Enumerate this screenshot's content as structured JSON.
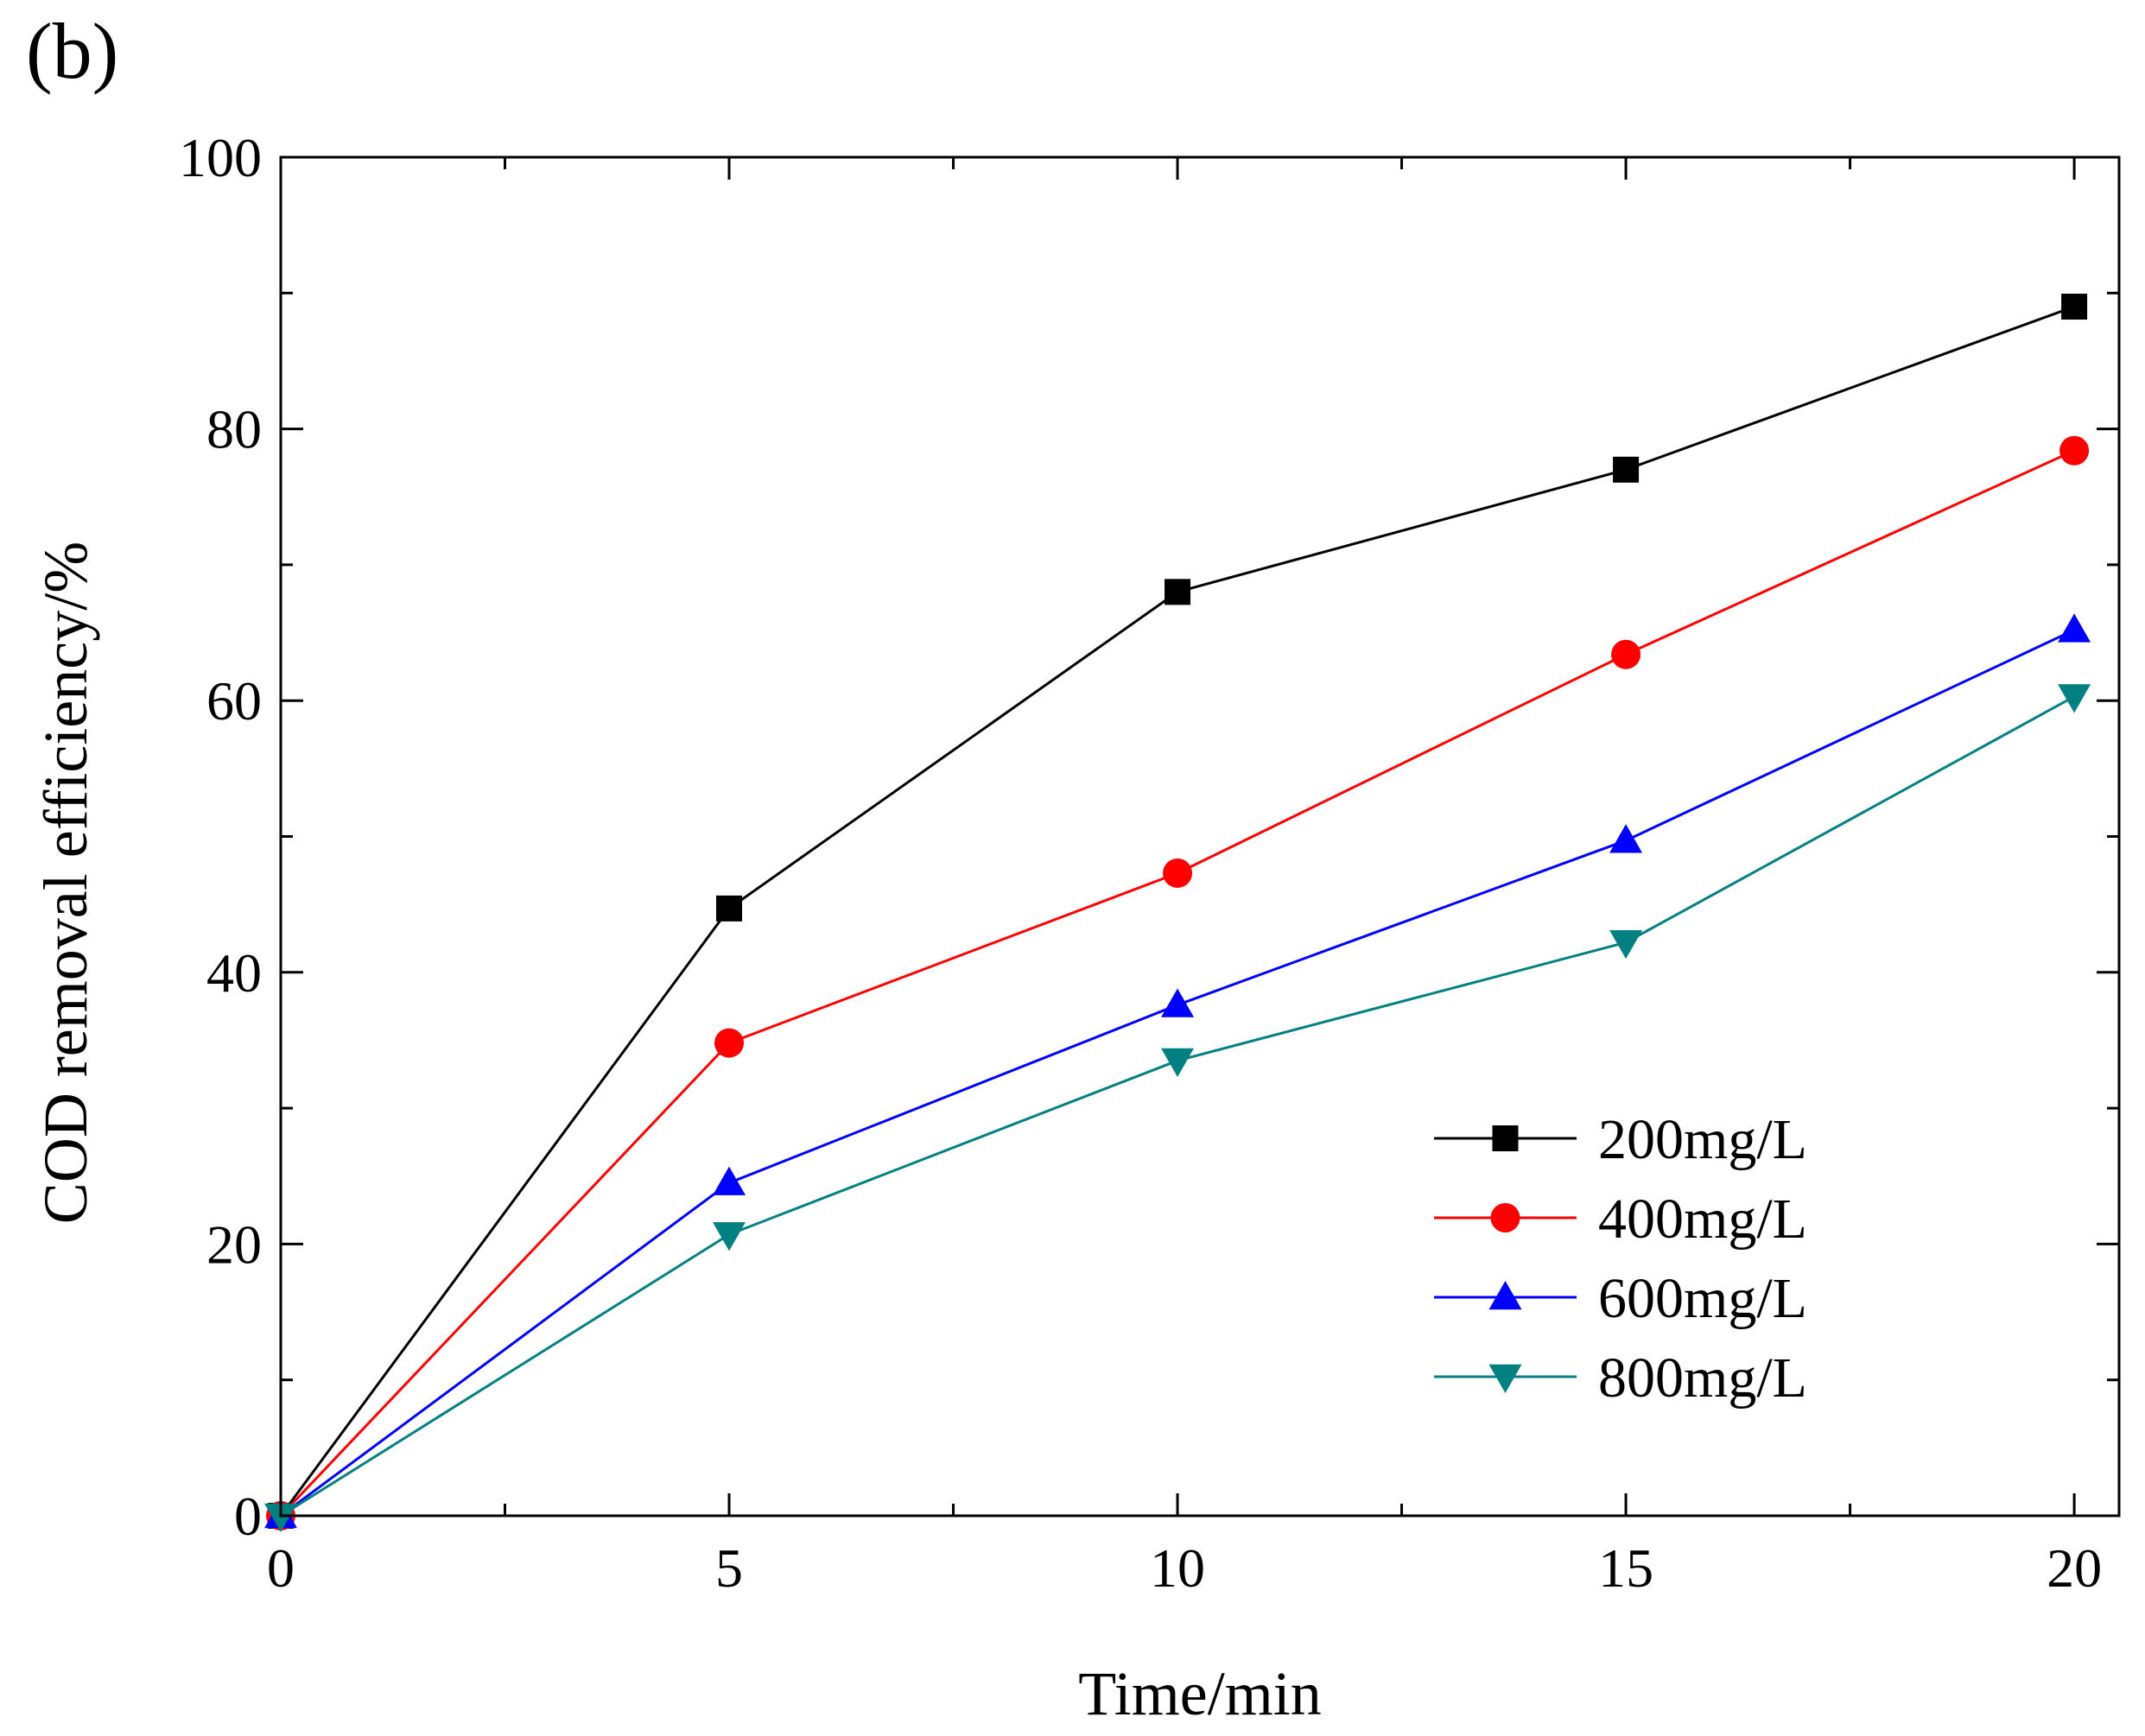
{
  "panel_label": "(b)",
  "chart_data": {
    "type": "line",
    "title": "",
    "xlabel": "Time/min",
    "ylabel": "COD removal efficiency/%",
    "x": [
      0,
      5,
      10,
      15,
      20
    ],
    "xlim": [
      0,
      20.5
    ],
    "ylim": [
      0,
      100
    ],
    "x_ticks": [
      0,
      5,
      10,
      15,
      20
    ],
    "x_tick_labels": [
      "0",
      "5",
      "10",
      "15",
      "20"
    ],
    "x_minor_ticks": [
      2.5,
      7.5,
      12.5,
      17.5
    ],
    "y_ticks": [
      0,
      20,
      40,
      60,
      80,
      100
    ],
    "y_tick_labels": [
      "0",
      "20",
      "40",
      "60",
      "80",
      "100"
    ],
    "y_minor_ticks": [
      10,
      30,
      50,
      70,
      90
    ],
    "grid": false,
    "legend_position": "bottom-right",
    "series": [
      {
        "name": "200mg/L",
        "values": [
          0,
          44.7,
          68.0,
          77.0,
          89.0
        ],
        "color": "#000000",
        "marker": "square"
      },
      {
        "name": "400mg/L",
        "values": [
          0,
          34.8,
          47.3,
          63.4,
          78.4
        ],
        "color": "#ff0000",
        "marker": "circle"
      },
      {
        "name": "600mg/L",
        "values": [
          0,
          24.5,
          37.6,
          49.7,
          65.2
        ],
        "color": "#0000ff",
        "marker": "triangle-up"
      },
      {
        "name": "800mg/L",
        "values": [
          0,
          20.7,
          33.5,
          42.2,
          60.3
        ],
        "color": "#008080",
        "marker": "triangle-down"
      }
    ]
  }
}
